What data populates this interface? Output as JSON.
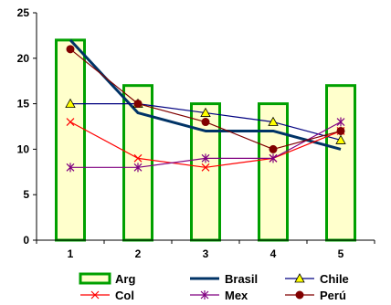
{
  "chart_data": {
    "type": "bar",
    "categories": [
      "1",
      "2",
      "3",
      "4",
      "5"
    ],
    "ylim": [
      0,
      25
    ],
    "yticks": [
      0,
      5,
      10,
      15,
      20,
      25
    ],
    "grid": false,
    "legend_position": "bottom",
    "series": [
      {
        "name": "Arg",
        "type": "bar",
        "values": [
          22,
          17,
          15,
          15,
          17
        ],
        "fill": "#ffffcc",
        "stroke": "#00a000",
        "marker": "none"
      },
      {
        "name": "Brasil",
        "type": "line",
        "values": [
          22,
          14,
          12,
          12,
          10
        ],
        "color": "#003366",
        "marker": "none"
      },
      {
        "name": "Chile",
        "type": "line",
        "values": [
          15,
          15,
          14,
          13,
          11
        ],
        "color": "#000080",
        "marker": "triangle",
        "marker_color": "#ffff00"
      },
      {
        "name": "Col",
        "type": "line",
        "values": [
          13,
          9,
          8,
          9,
          12
        ],
        "color": "#ff0000",
        "marker": "x"
      },
      {
        "name": "Mex",
        "type": "line",
        "values": [
          8,
          8,
          9,
          9,
          13
        ],
        "color": "#800080",
        "marker": "star"
      },
      {
        "name": "Perú",
        "type": "line",
        "values": [
          21,
          15,
          13,
          10,
          12
        ],
        "color": "#800000",
        "marker": "circle"
      }
    ]
  }
}
